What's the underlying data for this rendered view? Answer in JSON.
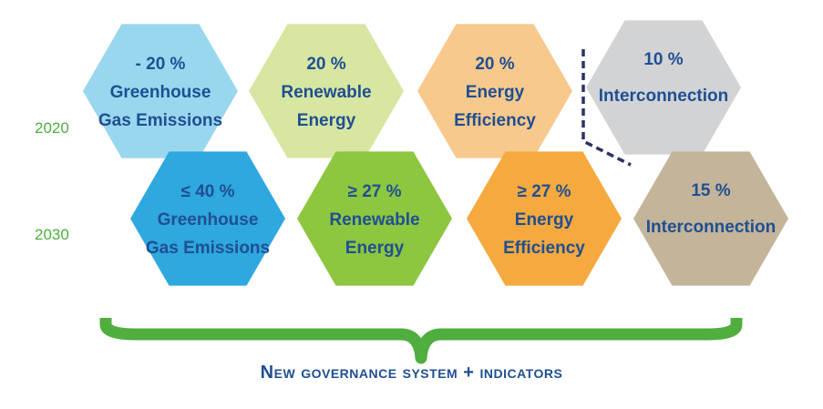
{
  "rows": [
    {
      "year": "2020",
      "hexes": [
        {
          "id": "ghg-2020",
          "lines": [
            "- 20 %",
            "Greenhouse",
            "Gas Emissions"
          ],
          "color": "#99d7ef"
        },
        {
          "id": "renewable-2020",
          "lines": [
            "20 %",
            "Renewable",
            "Energy"
          ],
          "color": "#d7e6a1"
        },
        {
          "id": "efficiency-2020",
          "lines": [
            "20 %",
            "Energy",
            "Efficiency"
          ],
          "color": "#f8c98c"
        },
        {
          "id": "interconnection-2020",
          "lines": [
            "10 %",
            "Interconnection"
          ],
          "color": "#d2d3d5"
        }
      ]
    },
    {
      "year": "2030",
      "hexes": [
        {
          "id": "ghg-2030",
          "lines": [
            "≤ 40 %",
            "Greenhouse",
            "Gas Emissions"
          ],
          "color": "#2ea8df"
        },
        {
          "id": "renewable-2030",
          "lines": [
            "≥ 27 %",
            "Renewable",
            "Energy"
          ],
          "color": "#8dc63f"
        },
        {
          "id": "efficiency-2030",
          "lines": [
            "≥ 27 %",
            "Energy",
            "Efficiency"
          ],
          "color": "#f5a93e"
        },
        {
          "id": "interconnection-2030",
          "lines": [
            "15 %",
            "Interconnection"
          ],
          "color": "#c3b49a"
        }
      ]
    }
  ],
  "brace_color": "#4fae3e",
  "divider_color": "#2c3263",
  "footer": "New governance system + indicators"
}
